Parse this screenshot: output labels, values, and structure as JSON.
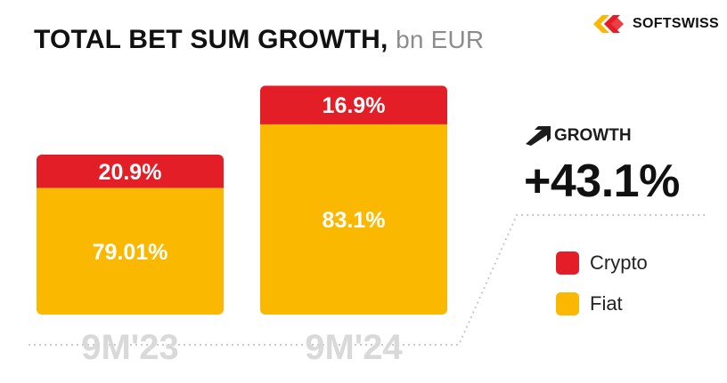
{
  "header": {
    "title": "TOTAL BET SUM GROWTH,",
    "unit": "bn EUR",
    "brand": "SOFTSWISS",
    "logo_icon": "softswiss-logo"
  },
  "growth": {
    "label": "GROWTH",
    "value": "+43.1%",
    "icon": "arrow-up-right-icon"
  },
  "legend": {
    "items": [
      {
        "label": "Crypto",
        "color": "#e41e26"
      },
      {
        "label": "Fiat",
        "color": "#fbb800"
      }
    ]
  },
  "chart_data": {
    "type": "bar",
    "stacked": true,
    "categories": [
      "9M'23",
      "9M'24"
    ],
    "totals_growth_percent": 43.1,
    "series": [
      {
        "name": "Fiat",
        "color": "#fbb800",
        "values": [
          79.01,
          83.1
        ],
        "labels": [
          "79.01%",
          "83.1%"
        ]
      },
      {
        "name": "Crypto",
        "color": "#e41e26",
        "values": [
          20.9,
          16.9
        ],
        "labels": [
          "20.9%",
          "16.9%"
        ]
      }
    ],
    "relative_totals": [
      1.0,
      1.431
    ],
    "ylabel": "",
    "xlabel": "",
    "grid": false,
    "legend_position": "right"
  }
}
